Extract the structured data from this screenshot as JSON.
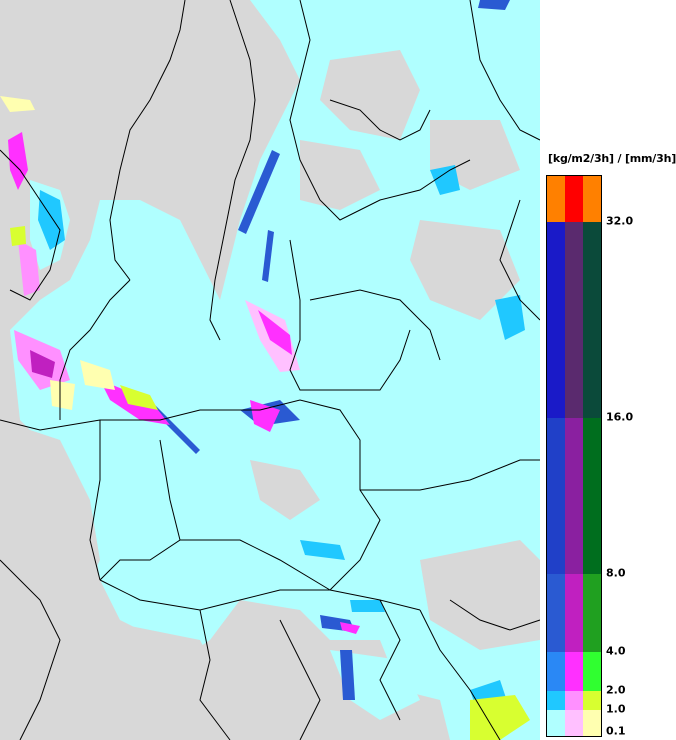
{
  "legend": {
    "title": "[kg/m2/3h] / [mm/3h]",
    "ticks": [
      "32.0",
      "16.0",
      "8.0",
      "4.0",
      "2.0",
      "1.0",
      "0.1"
    ],
    "tick_values": [
      32.0,
      16.0,
      8.0,
      4.0,
      2.0,
      1.0,
      0.1
    ],
    "bands": [
      {
        "label": "≥32",
        "colors": [
          "#ff8000",
          "#ff0000",
          "#ff8000"
        ]
      },
      {
        "label": "16–32",
        "colors": [
          "#1a1ac8",
          "#5a2a6e",
          "#0b4a3a"
        ]
      },
      {
        "label": "8–16",
        "colors": [
          "#2040c8",
          "#8a20a0",
          "#006e1e"
        ]
      },
      {
        "label": "4–8",
        "colors": [
          "#2a5ad2",
          "#c020c0",
          "#20a020"
        ]
      },
      {
        "label": "2–4",
        "colors": [
          "#2a88f5",
          "#ff30ff",
          "#30ff30"
        ]
      },
      {
        "label": "1–2",
        "colors": [
          "#20c8ff",
          "#ff90ff",
          "#d8ff30"
        ]
      },
      {
        "label": "0.1–1",
        "colors": [
          "#b0ffff",
          "#ffc0ff",
          "#ffffb0"
        ]
      }
    ]
  },
  "map": {
    "colors": {
      "background": "#d8d8d8",
      "light_precip": "#b0ffff",
      "medium_precip": "#20c8ff",
      "heavy_precip": "#2a5ad2",
      "snow_light": "#ffc0ff",
      "snow_heavy": "#ff30ff",
      "mixed_light": "#ffffb0",
      "mixed_medium": "#d8ff30",
      "border_line": "#000000"
    }
  }
}
